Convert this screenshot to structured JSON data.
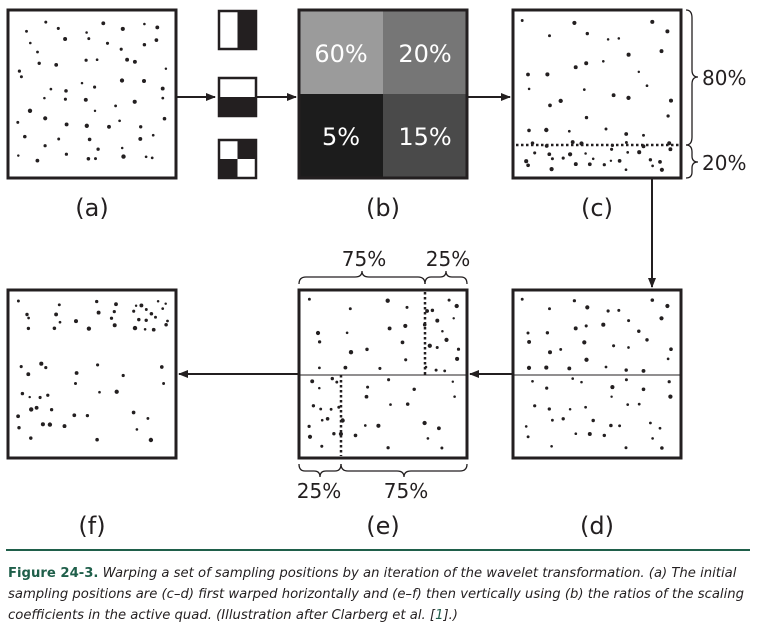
{
  "panels": {
    "a": "(a)",
    "b": "(b)",
    "c": "(c)",
    "d": "(d)",
    "e": "(e)",
    "f": "(f)"
  },
  "quad": {
    "top_left": "60%",
    "top_right": "20%",
    "bottom_left": "5%",
    "bottom_right": "15%"
  },
  "panel_c_split": {
    "upper": "80%",
    "lower": "20%"
  },
  "panel_e_split": {
    "top_left": "75%",
    "top_right": "25%",
    "bottom_left": "25%",
    "bottom_right": "75%"
  },
  "caption": {
    "figure_label": "Figure 24-3.",
    "text": "Warping a set of sampling positions by an iteration of the wavelet transformation. (a) The initial sampling positions are (c–d) first warped horizontally and (e–f) then vertically using (b) the ratios of the scaling coefficients in the active quad. (Illustration after Clarberg et al. [",
    "ref": "1",
    "end": "].)"
  },
  "colors": {
    "quad_top_left": "#9b9b9b",
    "quad_top_right": "#767676",
    "quad_bottom_left": "#1c1c1c",
    "quad_bottom_right": "#4a4a4a",
    "accent": "#1f5f4a"
  }
}
